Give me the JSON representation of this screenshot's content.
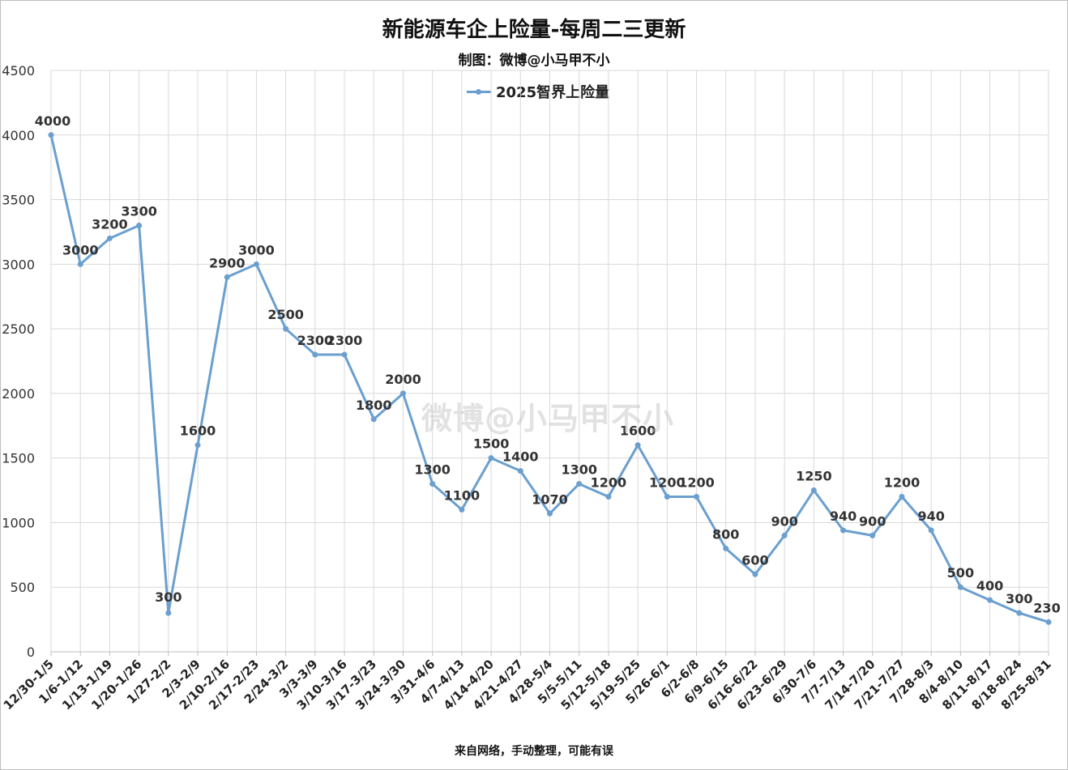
{
  "title": "新能源车企上险量-每周二三更新",
  "subtitle": "制图：微博@小马甲不小",
  "footer": "来自网络，手动整理，可能有误",
  "watermark": "微博@小马甲不小",
  "colors": {
    "line": "#6a9fcf",
    "grid": "#d9d9d9",
    "text": "#222222"
  },
  "chart_data": {
    "type": "line",
    "title": "新能源车企上险量-每周二三更新",
    "subtitle": "制图：微博@小马甲不小",
    "ylim": [
      0,
      4500
    ],
    "yticks": [
      0,
      500,
      1000,
      1500,
      2000,
      2500,
      3000,
      3500,
      4000,
      4500
    ],
    "grid": true,
    "legend_position": "top-center",
    "categories": [
      "12/30-1/5",
      "1/6-1/12",
      "1/13-1/19",
      "1/20-1/26",
      "1/27-2/2",
      "2/3-2/9",
      "2/10-2/16",
      "2/17-2/23",
      "2/24-3/2",
      "3/3-3/9",
      "3/10-3/16",
      "3/17-3/23",
      "3/24-3/30",
      "3/31-4/6",
      "4/7-4/13",
      "4/14-4/20",
      "4/21-4/27",
      "4/28-5/4",
      "5/5-5/11",
      "5/12-5/18",
      "5/19-5/25",
      "5/26-6/1",
      "6/2-6/8",
      "6/9-6/15",
      "6/16-6/22",
      "6/23-6/29",
      "6/30-7/6",
      "7/7-7/13",
      "7/14-7/20",
      "7/21-7/27",
      "7/28-8/3",
      "8/4-8/10",
      "8/11-8/17",
      "8/18-8/24",
      "8/25-8/31"
    ],
    "series": [
      {
        "name": "2025智界上险量",
        "values": [
          4000,
          3000,
          3200,
          3300,
          300,
          1600,
          2900,
          3000,
          2500,
          2300,
          2300,
          1800,
          2000,
          1300,
          1100,
          1500,
          1400,
          1070,
          1300,
          1200,
          1600,
          1200,
          1200,
          800,
          600,
          900,
          1250,
          940,
          900,
          1200,
          940,
          500,
          400,
          300,
          230
        ]
      }
    ]
  }
}
